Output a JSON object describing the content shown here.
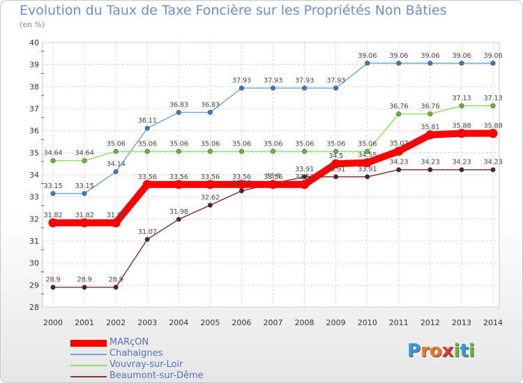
{
  "chart_data": {
    "type": "line",
    "title": "Evolution du Taux de Taxe Foncière sur les Propriétés Non Bâties",
    "subtitle": "(en %)",
    "xlabel": "",
    "ylabel": "",
    "categories": [
      "2000",
      "2001",
      "2002",
      "2003",
      "2004",
      "2005",
      "2006",
      "2007",
      "2008",
      "2009",
      "2010",
      "2011",
      "2012",
      "2013",
      "2014"
    ],
    "ylim": [
      28,
      40
    ],
    "yticks": [
      28,
      29,
      30,
      31,
      32,
      33,
      34,
      35,
      36,
      37,
      38,
      39,
      40
    ],
    "grid": true,
    "legend_position": "bottom-left",
    "series": [
      {
        "name": "MARçON",
        "color": "#ff0000",
        "marker_color": "#ff0000",
        "emphasis": true,
        "values": [
          31.82,
          31.82,
          31.82,
          33.56,
          33.56,
          33.56,
          33.56,
          33.56,
          33.56,
          34.5,
          34.55,
          35.07,
          35.81,
          35.88,
          35.88
        ],
        "labels": [
          "31.82",
          "31.82",
          "31.82",
          "33.56",
          "33.56",
          "33.56",
          "33.56",
          "33.56",
          "33.56",
          "34.5",
          "34.55",
          "35.07",
          "35.81",
          "35.88",
          "35.88"
        ]
      },
      {
        "name": "Chahaignes",
        "color": "#7aa6d6",
        "marker_color": "#3a7cc4",
        "values": [
          33.15,
          33.15,
          34.14,
          36.11,
          36.83,
          36.83,
          37.93,
          37.93,
          37.93,
          37.93,
          39.06,
          39.06,
          39.06,
          39.06,
          39.06
        ],
        "labels": [
          "33.15",
          "33.15",
          "34.14",
          "36.11",
          "36.83",
          "36.83",
          "37.93",
          "37.93",
          "37.93",
          "37.93",
          "39.06",
          "39.06",
          "39.06",
          "39.06",
          "39.06"
        ]
      },
      {
        "name": "Vouvray-sur-Loir",
        "color": "#99dd66",
        "marker_color": "#66bb33",
        "values": [
          34.64,
          34.64,
          35.06,
          35.06,
          35.06,
          35.06,
          35.06,
          35.06,
          35.06,
          35.06,
          35.06,
          36.76,
          36.76,
          37.13,
          37.13
        ],
        "labels": [
          "34.64",
          "34.64",
          "35.06",
          "35.06",
          "35.06",
          "35.06",
          "35.06",
          "35.06",
          "35.06",
          "35.06",
          "35.06",
          "36.76",
          "36.76",
          "37.13",
          "37.13"
        ]
      },
      {
        "name": "Beaumont-sur-Dême",
        "color": "#7a3a3a",
        "marker_color": "#5a1f1f",
        "values": [
          28.9,
          28.9,
          28.9,
          31.07,
          31.98,
          32.62,
          33.27,
          33.6,
          33.91,
          33.91,
          33.91,
          34.23,
          34.23,
          34.23,
          34.23
        ],
        "labels": [
          "28.9",
          "28.9",
          "28.9",
          "31.07",
          "31.98",
          "32.62",
          "33.27",
          "33.6",
          "33.91",
          "33.91",
          "33.91",
          "34.23",
          "34.23",
          "34.23",
          "34.23"
        ]
      }
    ]
  },
  "logo": {
    "letters": [
      "P",
      "r",
      "o",
      "x",
      "i",
      "t",
      "i"
    ],
    "colors": [
      "#3399dd",
      "#ee7722",
      "#ee7722",
      "#dd3333",
      "#66bb33",
      "#3399dd",
      "#66bb33"
    ]
  }
}
